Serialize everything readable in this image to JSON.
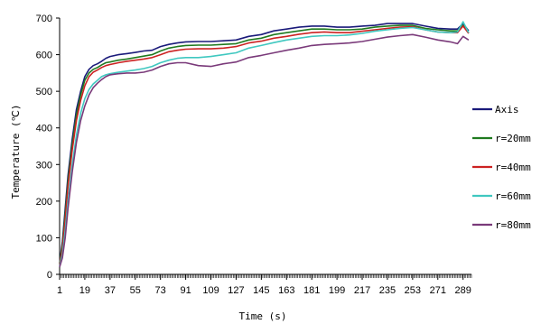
{
  "chart_data": {
    "type": "line",
    "title": "",
    "xlabel": "Time (s)",
    "ylabel": "Temperature (℃)",
    "xlim": [
      1,
      295
    ],
    "ylim": [
      0,
      700
    ],
    "x_ticks": [
      "1",
      "19",
      "37",
      "55",
      "73",
      "91",
      "109",
      "127",
      "145",
      "163",
      "181",
      "199",
      "217",
      "235",
      "253",
      "271",
      "289"
    ],
    "y_ticks": [
      "0",
      "100",
      "200",
      "300",
      "400",
      "500",
      "600",
      "700"
    ],
    "grid": false,
    "legend_position": "right",
    "series": [
      {
        "name": "Axis",
        "color": "#1a1a7a",
        "x": [
          1,
          3,
          5,
          7,
          10,
          13,
          16,
          19,
          22,
          25,
          28,
          31,
          34,
          37,
          43,
          49,
          55,
          61,
          67,
          73,
          79,
          85,
          91,
          100,
          109,
          118,
          127,
          136,
          145,
          154,
          163,
          172,
          181,
          190,
          199,
          208,
          217,
          226,
          235,
          244,
          253,
          262,
          271,
          280,
          285,
          289,
          293
        ],
        "y": [
          30,
          90,
          180,
          270,
          370,
          450,
          500,
          540,
          560,
          570,
          575,
          582,
          590,
          595,
          600,
          603,
          606,
          610,
          612,
          622,
          628,
          632,
          635,
          636,
          636,
          638,
          640,
          650,
          655,
          665,
          670,
          675,
          678,
          678,
          675,
          675,
          678,
          680,
          685,
          685,
          685,
          678,
          672,
          670,
          670,
          685,
          665
        ]
      },
      {
        "name": "r=20mm",
        "color": "#1f7a1f",
        "x": [
          1,
          3,
          5,
          7,
          10,
          13,
          16,
          19,
          22,
          25,
          28,
          31,
          34,
          37,
          43,
          49,
          55,
          61,
          67,
          73,
          79,
          85,
          91,
          100,
          109,
          118,
          127,
          136,
          145,
          154,
          163,
          172,
          181,
          190,
          199,
          208,
          217,
          226,
          235,
          244,
          253,
          262,
          271,
          280,
          285,
          289,
          293
        ],
        "y": [
          28,
          80,
          165,
          255,
          355,
          435,
          490,
          530,
          550,
          560,
          565,
          572,
          578,
          580,
          585,
          588,
          592,
          596,
          600,
          610,
          618,
          622,
          625,
          626,
          626,
          628,
          630,
          640,
          645,
          655,
          660,
          665,
          670,
          670,
          668,
          668,
          670,
          675,
          678,
          680,
          680,
          672,
          668,
          665,
          665,
          680,
          660
        ]
      },
      {
        "name": "r=40mm",
        "color": "#cc2222",
        "x": [
          1,
          3,
          5,
          7,
          10,
          13,
          16,
          19,
          22,
          25,
          28,
          31,
          34,
          37,
          43,
          49,
          55,
          61,
          67,
          73,
          79,
          85,
          91,
          100,
          109,
          118,
          127,
          136,
          145,
          154,
          163,
          172,
          181,
          190,
          199,
          208,
          217,
          226,
          235,
          244,
          253,
          262,
          271,
          280,
          285,
          289,
          293
        ],
        "y": [
          25,
          70,
          150,
          240,
          340,
          420,
          475,
          515,
          540,
          552,
          558,
          565,
          570,
          573,
          578,
          582,
          585,
          588,
          592,
          600,
          608,
          612,
          615,
          616,
          616,
          618,
          622,
          632,
          637,
          645,
          650,
          656,
          660,
          662,
          660,
          660,
          664,
          668,
          672,
          675,
          676,
          668,
          662,
          660,
          660,
          678,
          658
        ]
      },
      {
        "name": "r=60mm",
        "color": "#40c8c0",
        "x": [
          1,
          3,
          5,
          7,
          10,
          13,
          16,
          19,
          22,
          25,
          28,
          31,
          34,
          37,
          43,
          49,
          55,
          61,
          67,
          73,
          79,
          85,
          91,
          100,
          109,
          118,
          127,
          136,
          145,
          154,
          163,
          172,
          181,
          190,
          199,
          208,
          217,
          226,
          235,
          244,
          253,
          262,
          271,
          280,
          285,
          289,
          293
        ],
        "y": [
          22,
          55,
          120,
          200,
          300,
          380,
          440,
          480,
          505,
          520,
          530,
          540,
          545,
          548,
          552,
          555,
          558,
          562,
          568,
          578,
          585,
          590,
          592,
          592,
          595,
          600,
          605,
          618,
          625,
          633,
          640,
          645,
          650,
          652,
          652,
          654,
          658,
          664,
          668,
          672,
          674,
          668,
          662,
          660,
          662,
          690,
          660
        ]
      },
      {
        "name": "r=80mm",
        "color": "#7a3a7a",
        "x": [
          1,
          3,
          5,
          7,
          10,
          13,
          16,
          19,
          22,
          25,
          28,
          31,
          34,
          37,
          43,
          49,
          55,
          61,
          67,
          73,
          79,
          85,
          91,
          100,
          109,
          118,
          127,
          136,
          145,
          154,
          163,
          172,
          181,
          190,
          199,
          208,
          217,
          226,
          235,
          244,
          253,
          262,
          271,
          280,
          285,
          289,
          293
        ],
        "y": [
          20,
          45,
          100,
          180,
          280,
          360,
          420,
          460,
          490,
          510,
          522,
          532,
          540,
          545,
          548,
          550,
          550,
          552,
          558,
          568,
          575,
          578,
          578,
          570,
          568,
          575,
          580,
          592,
          598,
          605,
          612,
          618,
          625,
          628,
          630,
          632,
          636,
          642,
          648,
          652,
          655,
          648,
          640,
          635,
          630,
          650,
          640
        ]
      }
    ]
  }
}
